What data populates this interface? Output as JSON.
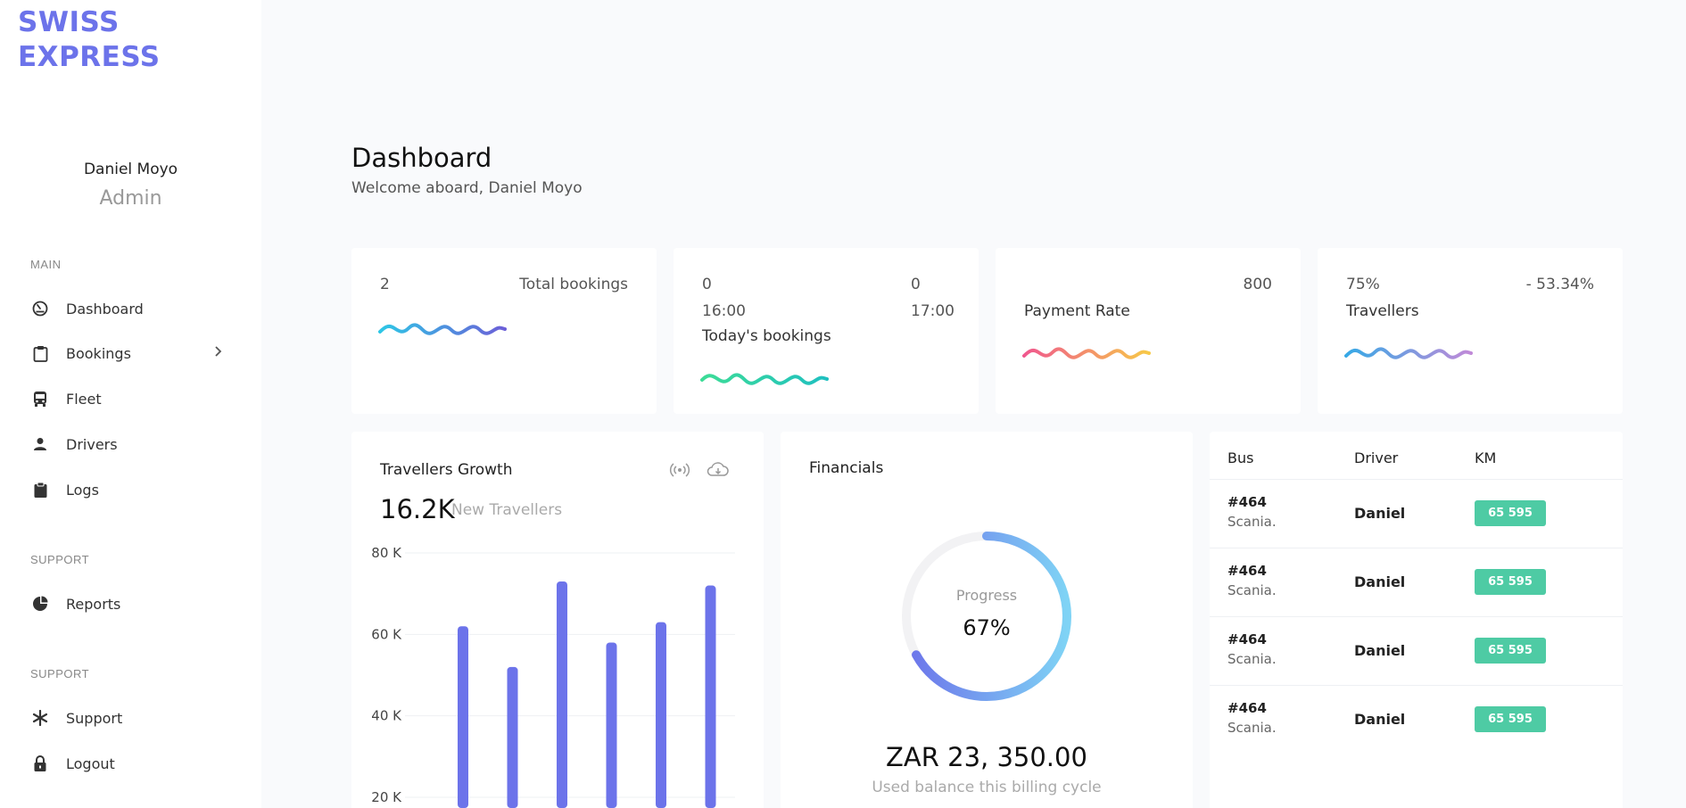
{
  "brand": {
    "line1": "SWISS",
    "line2": "EXPRESS",
    "color": "#6c73ea"
  },
  "user": {
    "name": "Daniel Moyo",
    "role": "Admin"
  },
  "sidebar": {
    "sections": [
      {
        "label": "MAIN",
        "items": [
          {
            "label": "Dashboard",
            "icon": "dashboard-gauge-icon"
          },
          {
            "label": "Bookings",
            "icon": "clipboard-icon",
            "has_chevron": true
          },
          {
            "label": "Fleet",
            "icon": "bus-icon"
          },
          {
            "label": "Drivers",
            "icon": "user-icon"
          },
          {
            "label": "Logs",
            "icon": "clipboard-filled-icon"
          }
        ]
      },
      {
        "label": "SUPPORT",
        "items": [
          {
            "label": "Reports",
            "icon": "pie-chart-icon"
          }
        ]
      },
      {
        "label": "SUPPORT",
        "items": [
          {
            "label": "Support",
            "icon": "asterisk-icon"
          },
          {
            "label": "Logout",
            "icon": "lock-icon"
          }
        ]
      }
    ]
  },
  "header": {
    "title": "Dashboard",
    "subtitle": "Welcome aboard, Daniel Moyo"
  },
  "stats": {
    "total_bookings": {
      "value": "2",
      "label": "Total bookings"
    },
    "todays_bookings": {
      "count_a": "0",
      "time_a": "16:00",
      "count_b": "0",
      "time_b": "17:00",
      "label": "Today's bookings"
    },
    "payment_rate": {
      "value": "800",
      "label": "Payment Rate"
    },
    "travellers": {
      "percent": "75%",
      "change": "- 53.34%",
      "label": "Travellers"
    }
  },
  "growth": {
    "title": "Travellers Growth",
    "big_value": "16.2K",
    "big_label": "New Travellers",
    "icons": [
      "broadcast-icon",
      "cloud-download-icon"
    ]
  },
  "chart_data": {
    "type": "bar",
    "title": "Travellers Growth",
    "y_tick_labels": [
      "80 K",
      "60 K",
      "40 K",
      "20 K"
    ],
    "y_ticks": [
      80000,
      60000,
      40000,
      20000
    ],
    "ylim": [
      20000,
      80000
    ],
    "values": [
      62000,
      52000,
      73000,
      58000,
      63000,
      72000
    ],
    "color": "#6c73ea",
    "grid": true
  },
  "financials": {
    "title": "Financials",
    "progress_label": "Progress",
    "progress_text": "67%",
    "progress": 0.67,
    "amount": "ZAR 23, 350.00",
    "amount_label": "Used balance this billing cycle"
  },
  "table": {
    "headers": [
      "Bus",
      "Driver",
      "KM"
    ],
    "rows": [
      {
        "bus": "#464",
        "model": "Scania.",
        "driver": "Daniel",
        "km": "65 595"
      },
      {
        "bus": "#464",
        "model": "Scania.",
        "driver": "Daniel",
        "km": "65 595"
      },
      {
        "bus": "#464",
        "model": "Scania.",
        "driver": "Daniel",
        "km": "65 595"
      },
      {
        "bus": "#464",
        "model": "Scania.",
        "driver": "Daniel",
        "km": "65 595"
      }
    ],
    "badge_color": "#4ecba4"
  }
}
